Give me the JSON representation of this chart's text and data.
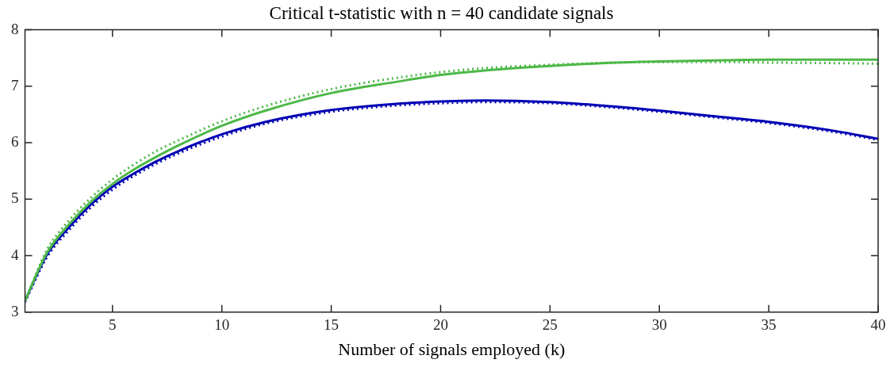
{
  "chart_data": {
    "type": "line",
    "title": "Critical t-statistic with n = 40 candidate signals",
    "xlabel": "Number of signals employed (k)",
    "x": [
      1,
      2,
      3,
      4,
      5,
      6,
      7,
      8,
      10,
      12,
      15,
      18,
      20,
      22,
      25,
      28,
      30,
      33,
      35,
      38,
      40
    ],
    "series": [
      {
        "color": "#4db848",
        "line_style": "solid",
        "values": [
          3.2,
          4.05,
          4.55,
          4.95,
          5.27,
          5.53,
          5.75,
          5.95,
          6.3,
          6.57,
          6.88,
          7.08,
          7.2,
          7.28,
          7.36,
          7.42,
          7.44,
          7.46,
          7.47,
          7.47,
          7.47
        ]
      },
      {
        "color": "#4db848",
        "line_style": "dotted",
        "values": [
          3.2,
          4.1,
          4.62,
          5.02,
          5.35,
          5.62,
          5.85,
          6.04,
          6.38,
          6.65,
          6.95,
          7.15,
          7.25,
          7.32,
          7.38,
          7.42,
          7.43,
          7.43,
          7.42,
          7.41,
          7.4
        ]
      },
      {
        "color": "#0000b4",
        "line_style": "solid",
        "values": [
          3.2,
          4.02,
          4.5,
          4.9,
          5.22,
          5.46,
          5.67,
          5.85,
          6.15,
          6.37,
          6.58,
          6.69,
          6.73,
          6.75,
          6.72,
          6.64,
          6.57,
          6.45,
          6.37,
          6.21,
          6.07
        ]
      },
      {
        "color": "#0000b4",
        "line_style": "dotted",
        "values": [
          3.18,
          3.97,
          4.45,
          4.85,
          5.17,
          5.42,
          5.63,
          5.81,
          6.11,
          6.34,
          6.55,
          6.66,
          6.7,
          6.72,
          6.7,
          6.62,
          6.55,
          6.43,
          6.35,
          6.19,
          6.05
        ]
      }
    ],
    "xlim": [
      1,
      40
    ],
    "xticks": [
      5,
      10,
      15,
      20,
      25,
      30,
      35,
      40
    ],
    "ylim": [
      3,
      8
    ],
    "yticks": [
      3,
      4,
      5,
      6,
      7,
      8
    ],
    "grid": false,
    "legend": false,
    "marker": "none"
  }
}
